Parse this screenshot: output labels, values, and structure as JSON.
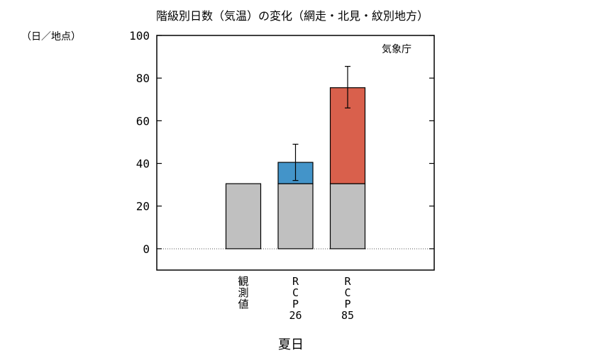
{
  "chart_data": {
    "type": "bar",
    "title": "階級別日数（気温）の変化（網走・北見・紋別地方）",
    "ylabel": "（日／地点）",
    "xlabel": "夏日",
    "source_note": "気象庁",
    "ylim": [
      -10,
      100
    ],
    "yticks": [
      0,
      20,
      40,
      60,
      80,
      100
    ],
    "zero_line": "dotted",
    "categories": [
      [
        "観",
        "測",
        "値"
      ],
      [
        "R",
        "C",
        "P",
        "26"
      ],
      [
        "R",
        "C",
        "P",
        "85"
      ]
    ],
    "series": [
      {
        "values": [
          30.5,
          30.5,
          30.5
        ],
        "color": "#c0c0c0"
      },
      {
        "values": [
          0,
          10,
          45
        ],
        "colors": [
          "#c0c0c0",
          "#4394c9",
          "#d9604c"
        ]
      }
    ],
    "error_bars": [
      null,
      {
        "low": 32,
        "high": 49
      },
      {
        "low": 66,
        "high": 85.5
      }
    ]
  }
}
